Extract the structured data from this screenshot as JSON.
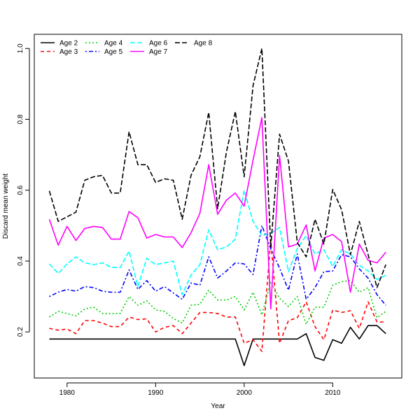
{
  "chart_data": {
    "type": "line",
    "title": "",
    "xlabel": "Year",
    "ylabel": "Discard mean weight",
    "xlim": [
      1976.3,
      2017.8
    ],
    "ylim": [
      0.07,
      1.04
    ],
    "x_ticks": [
      1980,
      1990,
      2000,
      2010
    ],
    "y_ticks": [
      0.2,
      0.4,
      0.6,
      0.8,
      1.0
    ],
    "y_tick_labels": [
      "0.2",
      "0.4",
      "0.6",
      "0.8",
      "1.0"
    ],
    "grid": false,
    "legend_position": "top-left",
    "series": [
      {
        "name": "Age 2",
        "color": "#000000",
        "dash": "solid",
        "x": [
          1978,
          1979,
          1980,
          1981,
          1982,
          1983,
          1984,
          1985,
          1986,
          1987,
          1988,
          1989,
          1990,
          1991,
          1992,
          1993,
          1994,
          1995,
          1996,
          1997,
          1998,
          1999,
          2000,
          2001,
          2002,
          2003,
          2004,
          2005,
          2006,
          2007,
          2008,
          2009,
          2010,
          2011,
          2012,
          2013,
          2014,
          2015,
          2016
        ],
        "values": [
          0.18,
          0.18,
          0.18,
          0.18,
          0.18,
          0.18,
          0.18,
          0.18,
          0.18,
          0.18,
          0.18,
          0.18,
          0.18,
          0.18,
          0.18,
          0.18,
          0.18,
          0.18,
          0.18,
          0.18,
          0.18,
          0.18,
          0.105,
          0.18,
          0.18,
          0.18,
          0.18,
          0.18,
          0.18,
          0.195,
          0.128,
          0.12,
          0.178,
          0.168,
          0.213,
          0.18,
          0.218,
          0.218,
          0.195
        ]
      },
      {
        "name": "Age 3",
        "color": "#ff0000",
        "dash": "dashed",
        "x": [
          1978,
          1979,
          1980,
          1981,
          1982,
          1983,
          1984,
          1985,
          1986,
          1987,
          1988,
          1989,
          1990,
          1991,
          1992,
          1993,
          1994,
          1995,
          1996,
          1997,
          1998,
          1999,
          2000,
          2001,
          2002,
          2003,
          2004,
          2005,
          2006,
          2007,
          2008,
          2009,
          2010,
          2011,
          2012,
          2013,
          2014,
          2015,
          2016
        ],
        "values": [
          0.21,
          0.205,
          0.208,
          0.195,
          0.232,
          0.232,
          0.225,
          0.215,
          0.215,
          0.242,
          0.235,
          0.237,
          0.2,
          0.213,
          0.218,
          0.195,
          0.225,
          0.255,
          0.255,
          0.252,
          0.242,
          0.242,
          0.168,
          0.178,
          0.145,
          0.46,
          0.168,
          0.232,
          0.24,
          0.285,
          0.215,
          0.178,
          0.262,
          0.255,
          0.26,
          0.21,
          0.285,
          0.228,
          0.228
        ]
      },
      {
        "name": "Age 4",
        "color": "#00cd00",
        "dash": "dotted",
        "x": [
          1978,
          1979,
          1980,
          1981,
          1982,
          1983,
          1984,
          1985,
          1986,
          1987,
          1988,
          1989,
          1990,
          1991,
          1992,
          1993,
          1994,
          1995,
          1996,
          1997,
          1998,
          1999,
          2000,
          2001,
          2002,
          2003,
          2004,
          2005,
          2006,
          2007,
          2008,
          2009,
          2010,
          2011,
          2012,
          2013,
          2014,
          2015,
          2016
        ],
        "values": [
          0.242,
          0.258,
          0.252,
          0.245,
          0.265,
          0.27,
          0.252,
          0.252,
          0.252,
          0.3,
          0.275,
          0.288,
          0.262,
          0.258,
          0.238,
          0.225,
          0.275,
          0.278,
          0.318,
          0.29,
          0.29,
          0.3,
          0.262,
          0.312,
          0.248,
          0.342,
          0.295,
          0.272,
          0.3,
          0.222,
          0.27,
          0.27,
          0.332,
          0.342,
          0.345,
          0.312,
          0.325,
          0.24,
          0.258
        ]
      },
      {
        "name": "Age 5",
        "color": "#0000ff",
        "dash": "dotdash",
        "x": [
          1978,
          1979,
          1980,
          1981,
          1982,
          1983,
          1984,
          1985,
          1986,
          1987,
          1988,
          1989,
          1990,
          1991,
          1992,
          1993,
          1994,
          1995,
          1996,
          1997,
          1998,
          1999,
          2000,
          2001,
          2002,
          2003,
          2004,
          2005,
          2006,
          2007,
          2008,
          2009,
          2010,
          2011,
          2012,
          2013,
          2014,
          2015,
          2016
        ],
        "values": [
          0.3,
          0.312,
          0.32,
          0.315,
          0.328,
          0.325,
          0.315,
          0.312,
          0.312,
          0.375,
          0.32,
          0.345,
          0.315,
          0.328,
          0.31,
          0.292,
          0.338,
          0.332,
          0.412,
          0.352,
          0.372,
          0.395,
          0.392,
          0.362,
          0.5,
          0.435,
          0.38,
          0.318,
          0.42,
          0.292,
          0.325,
          0.37,
          0.372,
          0.418,
          0.412,
          0.378,
          0.352,
          0.305,
          0.275
        ]
      },
      {
        "name": "Age 6",
        "color": "#00ffff",
        "dash": "longdash",
        "x": [
          1978,
          1979,
          1980,
          1981,
          1982,
          1983,
          1984,
          1985,
          1986,
          1987,
          1988,
          1989,
          1990,
          1991,
          1992,
          1993,
          1994,
          1995,
          1996,
          1997,
          1998,
          1999,
          2000,
          2001,
          2002,
          2003,
          2004,
          2005,
          2006,
          2007,
          2008,
          2009,
          2010,
          2011,
          2012,
          2013,
          2014,
          2015,
          2016
        ],
        "values": [
          0.392,
          0.365,
          0.392,
          0.412,
          0.395,
          0.39,
          0.395,
          0.382,
          0.382,
          0.428,
          0.328,
          0.408,
          0.39,
          0.395,
          0.4,
          0.305,
          0.36,
          0.39,
          0.488,
          0.432,
          0.44,
          0.462,
          0.6,
          0.512,
          0.472,
          0.478,
          0.495,
          0.37,
          0.435,
          0.472,
          0.42,
          0.432,
          0.385,
          0.432,
          0.42,
          0.388,
          0.372,
          0.348,
          0.36
        ]
      },
      {
        "name": "Age 7",
        "color": "#ff00ff",
        "dash": "solid",
        "x": [
          1978,
          1979,
          1980,
          1981,
          1982,
          1983,
          1984,
          1985,
          1986,
          1987,
          1988,
          1989,
          1990,
          1991,
          1992,
          1993,
          1994,
          1995,
          1996,
          1997,
          1998,
          1999,
          2000,
          2001,
          2002,
          2003,
          2004,
          2005,
          2006,
          2007,
          2008,
          2009,
          2010,
          2011,
          2012,
          2013,
          2014,
          2015,
          2016
        ],
        "values": [
          0.518,
          0.445,
          0.498,
          0.458,
          0.492,
          0.498,
          0.495,
          0.462,
          0.462,
          0.54,
          0.522,
          0.465,
          0.475,
          0.468,
          0.468,
          0.438,
          0.48,
          0.535,
          0.672,
          0.532,
          0.572,
          0.592,
          0.555,
          0.685,
          0.805,
          0.265,
          0.698,
          0.44,
          0.448,
          0.502,
          0.372,
          0.465,
          0.475,
          0.455,
          0.312,
          0.448,
          0.402,
          0.395,
          0.425
        ]
      },
      {
        "name": "Age 8",
        "color": "#000000",
        "dash": "longdash",
        "x": [
          1978,
          1979,
          1980,
          1981,
          1982,
          1983,
          1984,
          1985,
          1986,
          1987,
          1988,
          1989,
          1990,
          1991,
          1992,
          1993,
          1994,
          1995,
          1996,
          1997,
          1998,
          1999,
          2000,
          2001,
          2002,
          2003,
          2004,
          2005,
          2006,
          2007,
          2008,
          2009,
          2010,
          2011,
          2012,
          2013,
          2014,
          2015,
          2016
        ],
        "values": [
          0.598,
          0.512,
          0.525,
          0.538,
          0.628,
          0.638,
          0.642,
          0.592,
          0.592,
          0.765,
          0.672,
          0.672,
          0.622,
          0.632,
          0.628,
          0.518,
          0.642,
          0.695,
          0.82,
          0.548,
          0.708,
          0.822,
          0.638,
          0.895,
          1.0,
          0.44,
          0.758,
          0.682,
          0.452,
          0.412,
          0.518,
          0.448,
          0.602,
          0.545,
          0.418,
          0.512,
          0.418,
          0.325,
          0.39
        ]
      }
    ]
  }
}
